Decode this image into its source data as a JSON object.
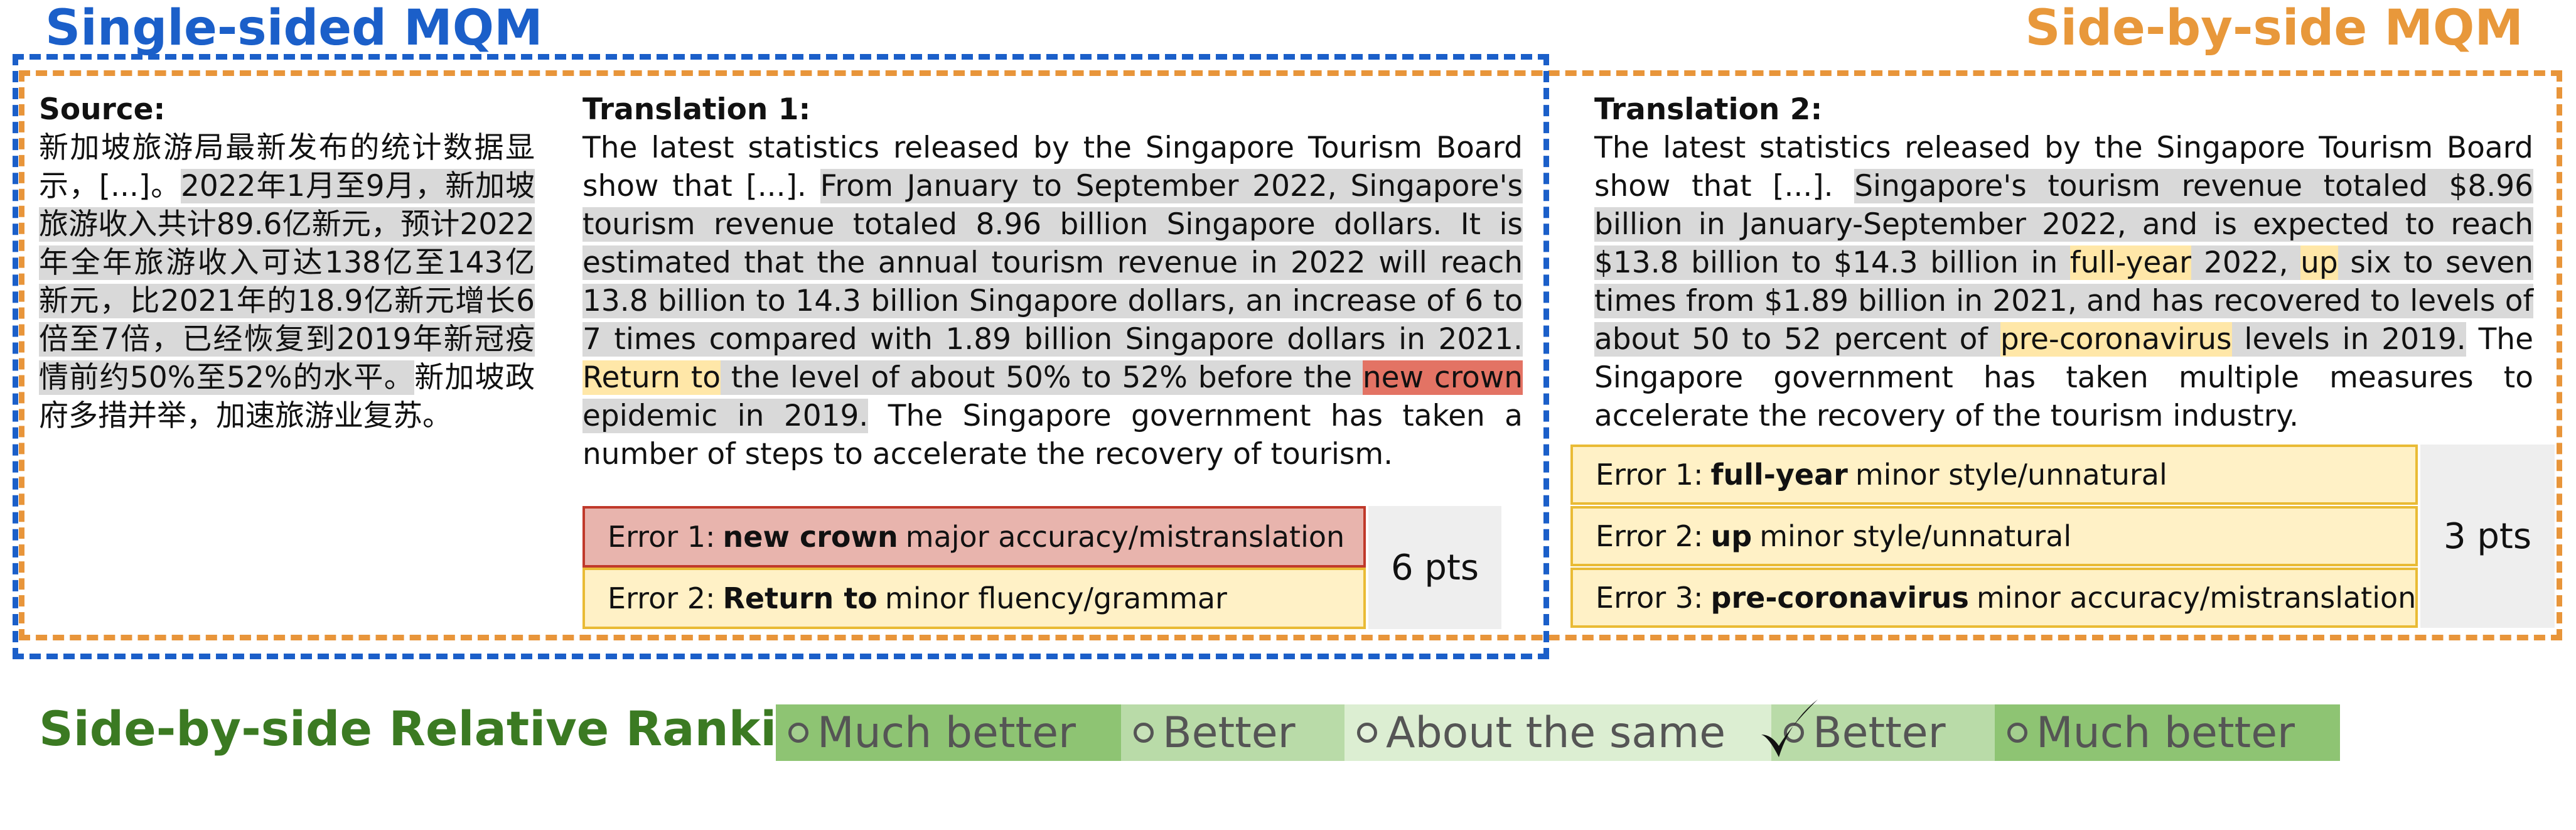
{
  "titles": {
    "single_sided": "Single-sided MQM",
    "side_by_side": "Side-by-side MQM"
  },
  "source": {
    "label": "Source:",
    "text_plain": "新加坡旅游局最新发布的统计数据显示，[...]。",
    "text_highlight": "2022年1月至9月，新加坡旅游收入共计89.6亿新元，预计2022年全年旅游收入可达138亿至143亿新元，比2021年的18.9亿新元增长6倍至7倍，已经恢复到2019年新冠疫情前约50%至52%的水平。",
    "text_end": "新加坡政府多措并举，加速旅游业复苏。"
  },
  "translation1": {
    "label": "Translation 1:",
    "seg1": "The latest statistics released by the Singapore Tourism Board show that [...]. ",
    "seg2": "From January to September 2022, Singapore's tourism revenue totaled 8.96 billion Singapore dollars. It is estimated that the annual tourism revenue in 2022 will reach 13.8 billion to 14.3 billion Singapore dollars, an increase of 6 to 7 times compared with 1.89 billion Singapore dollars in 2021.",
    "seg3": " ",
    "err_return": "Return to",
    "seg4": " the level of about 50% to 52% before the ",
    "err_crown": "new crown",
    "seg5": " epidemic in 2019.",
    "seg6": " The Singapore government has taken a number of steps to accelerate the recovery of tourism.",
    "errors": [
      {
        "prefix": "Error 1:",
        "span": "new crown",
        "desc": "major accuracy/mistranslation"
      },
      {
        "prefix": "Error 2:",
        "span": "Return to",
        "desc": "minor fluency/grammar"
      }
    ],
    "score": "6 pts"
  },
  "translation2": {
    "label": "Translation 2:",
    "seg1": "The latest statistics released by the Singapore Tourism Board show that [...]. ",
    "seg2": "Singapore's tourism revenue totaled $8.96 billion in January-September 2022, and is expected to reach $13.8 billion to $14.3 billion in ",
    "err_fullyear": "full-year",
    "seg3": " 2022, ",
    "err_up": "up",
    "seg4": " six to seven times from $1.89 billion in 2021, and has recovered to levels of about 50 to 52 percent of ",
    "err_precorona": "pre-coronavirus",
    "seg5": " levels in 2019.",
    "seg6": " The Singapore government has taken multiple measures to accelerate the recovery of the tourism industry.",
    "errors": [
      {
        "prefix": "Error 1:",
        "span": "full-year",
        "desc": "minor style/unnatural"
      },
      {
        "prefix": "Error 2:",
        "span": "up",
        "desc": "minor style/unnatural"
      },
      {
        "prefix": "Error 3:",
        "span": "pre-coronavirus",
        "desc": "minor accuracy/mistranslation"
      }
    ],
    "score": "3 pts"
  },
  "ranking": {
    "label": "Side-by-side Relative Ranking",
    "options": [
      "Much better",
      "Better",
      "About the same",
      "Better",
      "Much better"
    ],
    "selected_index": 3,
    "colors": [
      "#8ec473",
      "#b9dba8",
      "#dceed2",
      "#b9dba8",
      "#8ec473"
    ]
  }
}
